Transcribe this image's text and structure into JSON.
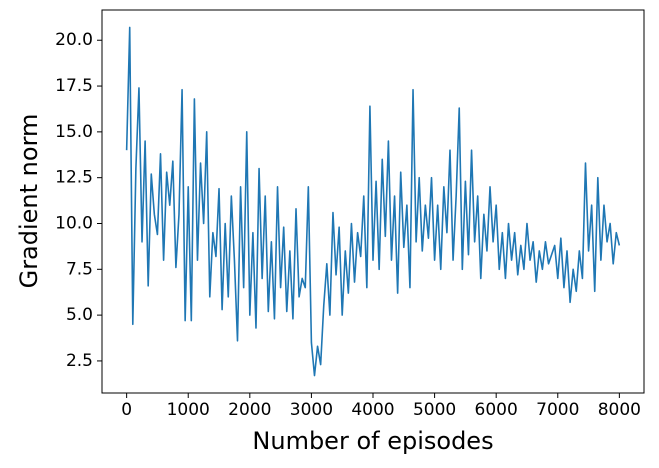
{
  "chart_data": {
    "type": "line",
    "xlabel": "Number of episodes",
    "ylabel": "Gradient norm",
    "xlim": [
      -400,
      8400
    ],
    "ylim": [
      0.75,
      21.65
    ],
    "xticks": [
      0,
      1000,
      2000,
      3000,
      4000,
      5000,
      6000,
      7000,
      8000
    ],
    "yticks": [
      2.5,
      {
        "value": 5,
        "label": "5.0"
      },
      7.5,
      {
        "value": 10,
        "label": "10.0"
      },
      12.5,
      {
        "value": 15,
        "label": "15.0"
      },
      17.5,
      {
        "value": 20,
        "label": "20.0"
      }
    ],
    "x": [
      0,
      50,
      100,
      150,
      200,
      250,
      300,
      350,
      400,
      450,
      500,
      550,
      600,
      650,
      700,
      750,
      800,
      850,
      900,
      950,
      1000,
      1050,
      1100,
      1150,
      1200,
      1250,
      1300,
      1350,
      1400,
      1450,
      1500,
      1550,
      1600,
      1650,
      1700,
      1750,
      1800,
      1850,
      1900,
      1950,
      2000,
      2050,
      2100,
      2150,
      2200,
      2250,
      2300,
      2350,
      2400,
      2450,
      2500,
      2550,
      2600,
      2650,
      2700,
      2750,
      2800,
      2850,
      2900,
      2950,
      3000,
      3050,
      3100,
      3150,
      3200,
      3250,
      3300,
      3350,
      3400,
      3450,
      3500,
      3550,
      3600,
      3650,
      3700,
      3750,
      3800,
      3850,
      3900,
      3950,
      4000,
      4050,
      4100,
      4150,
      4200,
      4250,
      4300,
      4350,
      4400,
      4450,
      4500,
      4550,
      4600,
      4650,
      4700,
      4750,
      4800,
      4850,
      4900,
      4950,
      5000,
      5050,
      5100,
      5150,
      5200,
      5250,
      5300,
      5350,
      5400,
      5450,
      5500,
      5550,
      5600,
      5650,
      5700,
      5750,
      5800,
      5850,
      5900,
      5950,
      6000,
      6050,
      6100,
      6150,
      6200,
      6250,
      6300,
      6350,
      6400,
      6450,
      6500,
      6550,
      6600,
      6650,
      6700,
      6750,
      6800,
      6850,
      6900,
      6950,
      7000,
      7050,
      7100,
      7150,
      7200,
      7250,
      7300,
      7350,
      7400,
      7450,
      7500,
      7550,
      7600,
      7650,
      7700,
      7750,
      7800,
      7850,
      7900,
      7950,
      8000
    ],
    "series": [
      {
        "color": "#1f77b4",
        "values": [
          14.0,
          20.7,
          4.5,
          13.0,
          17.4,
          9.0,
          14.5,
          6.6,
          12.7,
          10.5,
          9.4,
          13.8,
          8.0,
          12.8,
          11.0,
          13.4,
          7.6,
          10.5,
          17.3,
          4.7,
          12.0,
          4.7,
          16.8,
          8.0,
          13.3,
          10.0,
          15.0,
          6.0,
          9.5,
          8.2,
          11.9,
          5.3,
          10.0,
          6.0,
          11.5,
          8.0,
          3.6,
          12.0,
          6.5,
          15.0,
          5.0,
          9.5,
          4.3,
          13.0,
          7.0,
          11.5,
          5.2,
          9.0,
          4.8,
          12.0,
          6.5,
          9.8,
          5.2,
          8.5,
          4.8,
          10.8,
          6.0,
          7.0,
          6.5,
          12.0,
          3.5,
          1.7,
          3.3,
          2.3,
          5.5,
          7.8,
          5.0,
          10.6,
          7.2,
          9.8,
          5.0,
          8.5,
          6.2,
          10.0,
          6.8,
          9.5,
          8.2,
          11.5,
          6.5,
          16.4,
          8.0,
          12.3,
          7.5,
          13.5,
          9.3,
          14.5,
          8.0,
          11.5,
          6.2,
          12.8,
          8.7,
          11.0,
          6.5,
          17.3,
          9.0,
          12.5,
          8.5,
          11.0,
          9.2,
          12.5,
          8.0,
          11.0,
          7.5,
          12.0,
          9.5,
          14.0,
          8.0,
          11.5,
          16.3,
          7.5,
          12.3,
          8.3,
          14.0,
          9.0,
          11.5,
          7.0,
          10.5,
          8.5,
          12.0,
          9.0,
          11.0,
          7.5,
          9.5,
          7.0,
          10.0,
          8.0,
          9.5,
          7.2,
          8.8,
          7.5,
          10.0,
          8.0,
          9.0,
          6.8,
          8.5,
          7.5,
          9.0,
          7.8,
          8.3,
          8.8,
          7.0,
          9.2,
          6.5,
          8.5,
          5.7,
          7.5,
          6.3,
          8.5,
          7.0,
          13.3,
          8.5,
          11.0,
          6.3,
          12.5,
          8.0,
          11.0,
          9.0,
          10.0,
          7.8,
          9.5,
          8.8
        ]
      }
    ]
  }
}
